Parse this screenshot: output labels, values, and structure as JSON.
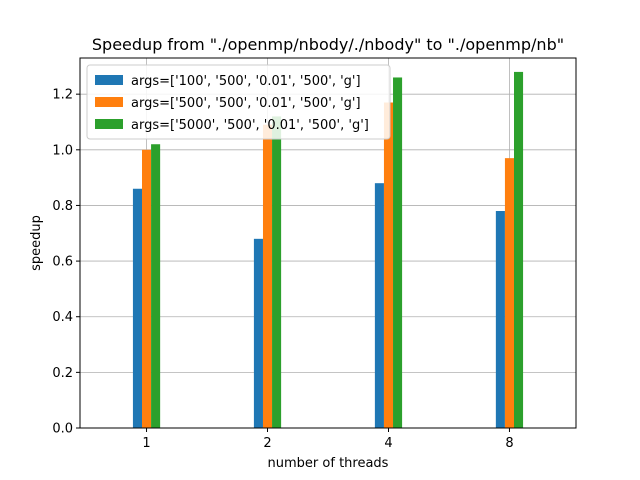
{
  "chart_data": {
    "type": "bar",
    "title": "Speedup from \"./openmp/nbody/./nbody\" to \"./openmp/nb\"",
    "xlabel": "number of threads",
    "ylabel": "speedup",
    "categories": [
      "1",
      "2",
      "4",
      "8"
    ],
    "ylim": [
      0,
      1.33
    ],
    "yticks": [
      0.0,
      0.2,
      0.4,
      0.6,
      0.8,
      1.0,
      1.2
    ],
    "ytick_labels": [
      "0.0",
      "0.2",
      "0.4",
      "0.6",
      "0.8",
      "1.0",
      "1.2"
    ],
    "grid": true,
    "legend_position": "top-left",
    "series": [
      {
        "name": "args=['100', '500', '0.01', '500', 'g']",
        "color": "#1f77b4",
        "values": [
          0.86,
          0.68,
          0.88,
          0.78
        ]
      },
      {
        "name": "args=['500', '500', '0.01', '500', 'g']",
        "color": "#ff7f0e",
        "values": [
          1.0,
          1.09,
          1.17,
          0.97
        ]
      },
      {
        "name": "args=['5000', '500', '0.01', '500', 'g']",
        "color": "#2ca02c",
        "values": [
          1.02,
          1.12,
          1.26,
          1.28
        ]
      }
    ]
  }
}
